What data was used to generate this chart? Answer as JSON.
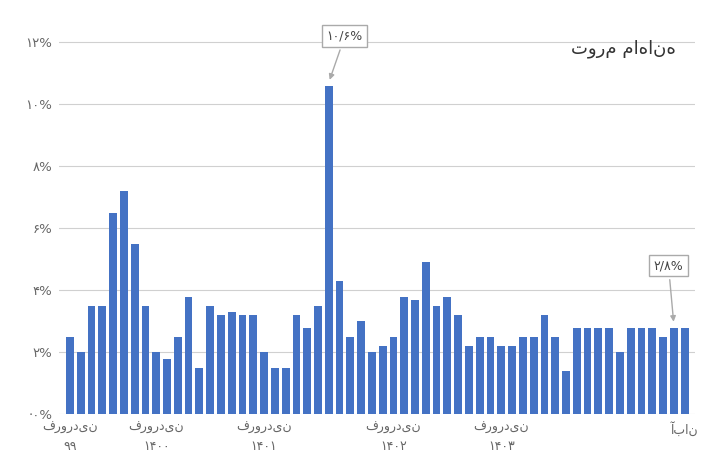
{
  "title": "تورم ماهانه",
  "bar_color": "#4472C4",
  "values": [
    2.5,
    2.0,
    3.5,
    3.5,
    6.5,
    7.2,
    5.5,
    3.5,
    2.0,
    1.8,
    2.5,
    3.8,
    1.5,
    3.5,
    3.2,
    3.3,
    3.2,
    3.2,
    2.0,
    1.5,
    1.5,
    3.2,
    2.8,
    3.5,
    10.6,
    4.3,
    2.5,
    3.0,
    2.0,
    2.2,
    2.5,
    3.8,
    3.7,
    4.9,
    3.5,
    3.8,
    3.2,
    2.2,
    2.5,
    2.5,
    2.2,
    2.2,
    2.5,
    2.5,
    3.2,
    2.5,
    1.4,
    2.8,
    2.8,
    2.8,
    2.8,
    2.0,
    2.8,
    2.8,
    2.8,
    2.5,
    2.8,
    2.8
  ],
  "xtick_positions": [
    0,
    8,
    18,
    30,
    40,
    57
  ],
  "xtick_labels": [
    "فروردین\n۹۹",
    "فروردین\n۱۴۰۰",
    "فروردین\n۱۴۰۱",
    "فروردین\n۱۴۰۲",
    "فروردین\n۱۴۰۳",
    "آبان"
  ],
  "ytick_values": [
    0,
    2,
    4,
    6,
    8,
    10,
    12
  ],
  "ytick_labels": [
    "⋅۰%",
    "۲%",
    "۴%",
    "۶%",
    "۸%",
    "۱۰%",
    "۱۲%"
  ],
  "ylim": [
    0,
    13
  ],
  "annotation_peak_label": "۱۰/۶%",
  "annotation_peak_idx": 24,
  "annotation_peak_val": 10.6,
  "annotation_last_label": "۲/۸%",
  "annotation_last_idx": 56,
  "annotation_last_val": 2.8,
  "bg_color": "#ffffff",
  "grid_color": "#d0d0d0"
}
